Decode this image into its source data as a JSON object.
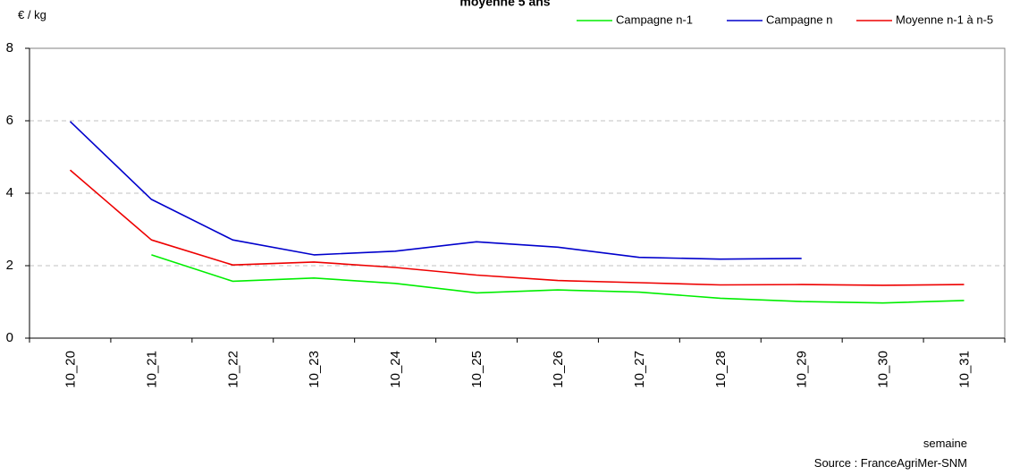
{
  "chart_data": {
    "type": "line",
    "title": "moyenne 5 ans",
    "ylabel": "€ / kg",
    "xlabel": "semaine",
    "source": "Source : FranceAgriMer-SNM",
    "ylim": [
      0,
      8
    ],
    "yticks": [
      "0",
      "2",
      "4",
      "6",
      "8"
    ],
    "grid": true,
    "legend_position": "top-right",
    "categories": [
      "10_20",
      "10_21",
      "10_22",
      "10_23",
      "10_24",
      "10_25",
      "10_26",
      "10_27",
      "10_28",
      "10_29",
      "10_30",
      "10_31"
    ],
    "series": [
      {
        "name": "Campagne n-1",
        "color": "#00ee00",
        "values": [
          null,
          2.3,
          1.57,
          1.66,
          1.51,
          1.25,
          1.33,
          1.27,
          1.1,
          1.01,
          0.97,
          1.04
        ]
      },
      {
        "name": "Campagne n",
        "color": "#0000cc",
        "values": [
          5.98,
          3.83,
          2.71,
          2.3,
          2.4,
          2.66,
          2.51,
          2.23,
          2.18,
          2.2,
          null,
          null
        ]
      },
      {
        "name": "Moyenne n-1 à n-5",
        "color": "#ee0000",
        "values": [
          4.64,
          2.71,
          2.02,
          2.1,
          1.95,
          1.74,
          1.59,
          1.53,
          1.47,
          1.48,
          1.46,
          1.48
        ]
      }
    ]
  }
}
